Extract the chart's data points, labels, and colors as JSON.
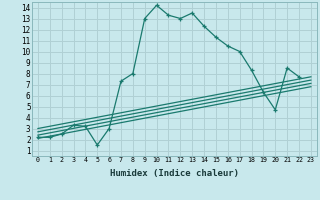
{
  "xlabel": "Humidex (Indice chaleur)",
  "xlim": [
    -0.5,
    23.5
  ],
  "ylim": [
    0.5,
    14.5
  ],
  "xticks": [
    0,
    1,
    2,
    3,
    4,
    5,
    6,
    7,
    8,
    9,
    10,
    11,
    12,
    13,
    14,
    15,
    16,
    17,
    18,
    19,
    20,
    21,
    22,
    23
  ],
  "yticks": [
    1,
    2,
    3,
    4,
    5,
    6,
    7,
    8,
    9,
    10,
    11,
    12,
    13,
    14
  ],
  "bg_color": "#c8e8ec",
  "line_color": "#1a7a6e",
  "grid_color": "#b0d0d4",
  "main_x": [
    0,
    1,
    2,
    3,
    4,
    5,
    6,
    7,
    8,
    9,
    10,
    11,
    12,
    13,
    14,
    15,
    16,
    17,
    18,
    19,
    20,
    21,
    22
  ],
  "main_y": [
    2.2,
    2.2,
    2.5,
    3.3,
    3.2,
    1.5,
    3.0,
    7.3,
    8.0,
    13.0,
    14.2,
    13.3,
    13.0,
    13.5,
    12.3,
    11.3,
    10.5,
    10.0,
    8.3,
    6.3,
    4.7,
    8.5,
    7.7
  ],
  "diag_lines": [
    [
      0.0,
      2.1,
      23.0,
      6.8
    ],
    [
      0.0,
      2.4,
      23.0,
      7.1
    ],
    [
      0.0,
      2.7,
      23.0,
      7.4
    ],
    [
      0.0,
      3.0,
      23.0,
      7.7
    ]
  ]
}
